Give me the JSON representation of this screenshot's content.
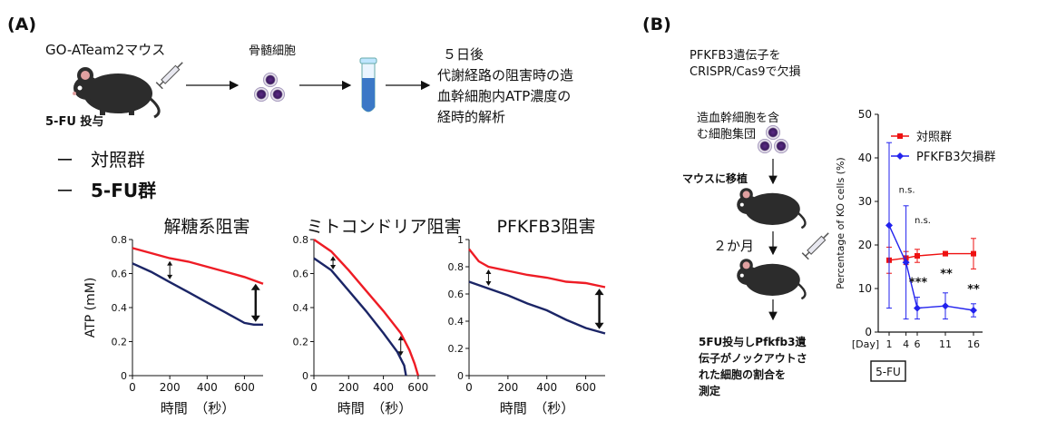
{
  "colors": {
    "control": "#ee1c25",
    "treated": "#1b2566",
    "blue_series": "#2222ee",
    "red_series": "#ee1111"
  },
  "panel_a": {
    "label": "(A)",
    "mouse_label": "GO-ATeam2マウス",
    "injection_label": "5-FU 投与",
    "bone_marrow_label": "骨髄細胞",
    "result_lines": [
      "５日後",
      "代謝経路の阻害時の造",
      "血幹細胞内ATP濃度の",
      "経時的解析"
    ],
    "legend": [
      {
        "dash": "ー",
        "name": "対照群",
        "color": "#ee1c25"
      },
      {
        "dash": "ー",
        "name": "5-FU群",
        "color": "#1b2566"
      }
    ],
    "icons": [
      "mouse-icon",
      "syringe-icon",
      "cells-icon",
      "tube-icon",
      "arrow-icon"
    ],
    "ylabel": "ATP (mM)",
    "xlabel": "時間　（秒）"
  },
  "panel_b": {
    "label": "(B)",
    "knockout_lines": [
      "PFKFB3遺伝子を",
      "CRISPR/Cas9で欠損"
    ],
    "hsc_lines": [
      "造血幹細胞を含",
      "む細胞集団"
    ],
    "transplant_label": "マウスに移植",
    "months_label": "２か月",
    "result_lines": [
      "5FU投与しPfkfb3遺",
      "伝子がノックアウトさ",
      "れた細胞の割合を",
      "測定"
    ],
    "icons": [
      "mouse-icon",
      "syringe-icon",
      "cells-icon",
      "down-arrow-icon"
    ]
  },
  "chart_data": [
    {
      "type": "line",
      "title": "解糖系阻害",
      "xlabel": "時間　（秒）",
      "ylabel": "ATP (mM)",
      "xlim": [
        0,
        700
      ],
      "ylim": [
        0,
        0.8
      ],
      "xticks": [
        "0",
        "200",
        "400",
        "600"
      ],
      "yticks": [
        "0",
        "0.2",
        "0.4",
        "0.6",
        "0.8"
      ],
      "series": [
        {
          "name": "対照群",
          "color": "#ee1c25",
          "x": [
            0,
            100,
            200,
            300,
            400,
            500,
            600,
            700
          ],
          "y": [
            0.75,
            0.72,
            0.69,
            0.67,
            0.64,
            0.61,
            0.58,
            0.54
          ]
        },
        {
          "name": "5-FU群",
          "color": "#1b2566",
          "x": [
            0,
            100,
            200,
            300,
            400,
            500,
            600,
            650,
            700
          ],
          "y": [
            0.66,
            0.61,
            0.55,
            0.49,
            0.43,
            0.37,
            0.31,
            0.3,
            0.3
          ]
        }
      ]
    },
    {
      "type": "line",
      "title": "ミトコンドリア阻害",
      "xlabel": "時間　（秒）",
      "ylabel": "",
      "xlim": [
        0,
        700
      ],
      "ylim": [
        0,
        0.8
      ],
      "xticks": [
        "0",
        "200",
        "400",
        "600"
      ],
      "yticks": [
        "0",
        "0.2",
        "0.4",
        "0.6",
        "0.8"
      ],
      "series": [
        {
          "name": "対照群",
          "color": "#ee1c25",
          "x": [
            0,
            100,
            200,
            300,
            400,
            500,
            550,
            580,
            600
          ],
          "y": [
            0.8,
            0.73,
            0.62,
            0.5,
            0.38,
            0.25,
            0.15,
            0.07,
            0.0
          ]
        },
        {
          "name": "5-FU群",
          "color": "#1b2566",
          "x": [
            0,
            100,
            200,
            300,
            400,
            480,
            520,
            530
          ],
          "y": [
            0.69,
            0.62,
            0.5,
            0.38,
            0.25,
            0.14,
            0.06,
            0.0
          ]
        }
      ]
    },
    {
      "type": "line",
      "title": "PFKFB3阻害",
      "xlabel": "時間　（秒）",
      "ylabel": "",
      "xlim": [
        0,
        700
      ],
      "ylim": [
        0,
        1.0
      ],
      "xticks": [
        "0",
        "200",
        "400",
        "600"
      ],
      "yticks": [
        "0",
        "0.2",
        "0.4",
        "0.6",
        "0.8",
        "1"
      ],
      "series": [
        {
          "name": "対照群",
          "color": "#ee1c25",
          "x": [
            0,
            50,
            100,
            200,
            300,
            400,
            500,
            600,
            700
          ],
          "y": [
            0.93,
            0.84,
            0.8,
            0.77,
            0.74,
            0.72,
            0.69,
            0.68,
            0.65
          ]
        },
        {
          "name": "5-FU群",
          "color": "#1b2566",
          "x": [
            0,
            100,
            200,
            300,
            400,
            500,
            600,
            700
          ],
          "y": [
            0.69,
            0.64,
            0.59,
            0.53,
            0.48,
            0.41,
            0.35,
            0.31
          ]
        }
      ]
    },
    {
      "type": "line",
      "title": "",
      "xlabel": "",
      "ylabel": "Percentage of KO cells (%)",
      "ylim": [
        0,
        50
      ],
      "xlim": [
        0,
        17
      ],
      "x_categories": [
        "[Day]",
        "1",
        "4",
        "6",
        "11",
        "16"
      ],
      "x_positions": [
        null,
        1,
        4,
        6,
        11,
        16
      ],
      "yticks": [
        "0",
        "10",
        "20",
        "30",
        "40",
        "50"
      ],
      "x_annotation": "5-FU",
      "legend": [
        "対照群",
        "PFKFB3欠損群"
      ],
      "series": [
        {
          "name": "対照群",
          "color": "#ee1111",
          "marker": "square",
          "x": [
            1,
            4,
            6,
            11,
            16
          ],
          "y": [
            16.5,
            17,
            17.5,
            18,
            18
          ],
          "err": [
            3,
            1.5,
            1.5,
            0.5,
            3.5
          ]
        },
        {
          "name": "PFKFB3欠損群",
          "color": "#2222ee",
          "marker": "diamond",
          "x": [
            1,
            4,
            6,
            11,
            16
          ],
          "y": [
            24.5,
            16,
            5.5,
            6,
            5
          ],
          "err": [
            19,
            13,
            2.5,
            3,
            1.5
          ]
        }
      ],
      "annotations": [
        {
          "x": 4,
          "text": "n.s."
        },
        {
          "x": 6,
          "text": "n.s."
        },
        {
          "x": 6,
          "text": "***"
        },
        {
          "x": 11,
          "text": "**"
        },
        {
          "x": 16,
          "text": "**"
        }
      ]
    }
  ]
}
